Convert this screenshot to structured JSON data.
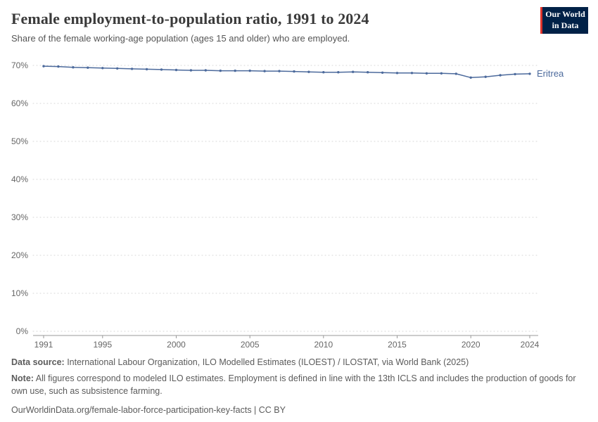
{
  "header": {
    "title": "Female employment-to-population ratio, 1991 to 2024",
    "subtitle": "Share of the female working-age population (ages 15 and older) who are employed.",
    "logo": {
      "line1": "Our World",
      "line2": "in Data"
    }
  },
  "chart_data": {
    "type": "line",
    "title": "Female employment-to-population ratio, 1991 to 2024",
    "entity_label": "Eritrea",
    "xlim": [
      1991,
      2024
    ],
    "ylim": [
      0,
      70
    ],
    "x_ticks": [
      1991,
      1995,
      2000,
      2005,
      2010,
      2015,
      2020,
      2024
    ],
    "y_ticks": [
      0,
      10,
      20,
      30,
      40,
      50,
      60,
      70
    ],
    "y_tick_suffix": "%",
    "grid": "dotted-horizontal",
    "legend_position": "right-of-line",
    "series": [
      {
        "name": "Eritrea",
        "color": "#4c6a9c",
        "x": [
          1991,
          1992,
          1993,
          1994,
          1995,
          1996,
          1997,
          1998,
          1999,
          2000,
          2001,
          2002,
          2003,
          2004,
          2005,
          2006,
          2007,
          2008,
          2009,
          2010,
          2011,
          2012,
          2013,
          2014,
          2015,
          2016,
          2017,
          2018,
          2019,
          2020,
          2021,
          2022,
          2023,
          2024
        ],
        "values": [
          69.8,
          69.7,
          69.5,
          69.4,
          69.3,
          69.2,
          69.1,
          69.0,
          68.9,
          68.8,
          68.7,
          68.7,
          68.6,
          68.6,
          68.6,
          68.5,
          68.5,
          68.4,
          68.3,
          68.2,
          68.2,
          68.3,
          68.2,
          68.1,
          68.0,
          68.0,
          67.9,
          67.9,
          67.8,
          66.8,
          67.0,
          67.4,
          67.7,
          67.8
        ]
      }
    ]
  },
  "footer": {
    "source_label": "Data source:",
    "source_text": " International Labour Organization, ILO Modelled Estimates (ILOEST) / ILOSTAT, via World Bank (2025)",
    "note_label": "Note:",
    "note_text": " All figures correspond to modeled ILO estimates. Employment is defined in line with the 13th ICLS and includes the production of goods for own use, such as subsistence farming.",
    "link": "OurWorldinData.org/female-labor-force-participation-key-facts | CC BY"
  },
  "colors": {
    "line": "#4c6a9c",
    "grid": "#d4d4d4",
    "axis": "#999999",
    "logo_background": "#002147",
    "logo_accent": "#e0332b",
    "text": "#5b5b5b"
  }
}
